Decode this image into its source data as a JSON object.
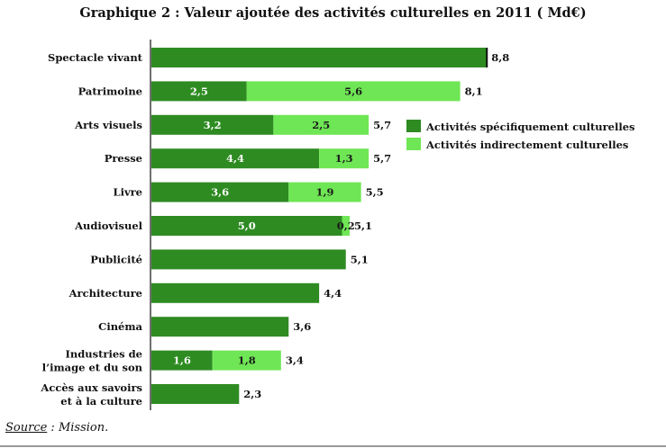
{
  "chart_data": {
    "type": "bar",
    "orientation": "horizontal",
    "stacked": true,
    "title": "Graphique 2 : Valeur ajoutée des activités culturelles en 2011 ( Md€)",
    "categories": [
      [
        "Spectacle vivant"
      ],
      [
        "Patrimoine"
      ],
      [
        "Arts visuels"
      ],
      [
        "Presse"
      ],
      [
        "Livre"
      ],
      [
        "Audiovisuel"
      ],
      [
        "Publicité"
      ],
      [
        "Architecture"
      ],
      [
        "Cinéma"
      ],
      [
        "Industries de",
        "l’image et du son"
      ],
      [
        "Accès aux savoirs",
        "et à la culture"
      ]
    ],
    "series": [
      {
        "name": "Activités spécifiquement culturelles",
        "color": "#2e8b22",
        "values": [
          8.8,
          2.5,
          3.2,
          4.4,
          3.6,
          5.0,
          5.1,
          4.4,
          3.6,
          1.6,
          2.3
        ]
      },
      {
        "name": "Activités indirectement culturelles",
        "color": "#6fe655",
        "values": [
          0,
          5.6,
          2.5,
          1.3,
          1.9,
          0.2,
          0,
          0,
          0,
          1.8,
          0
        ]
      }
    ],
    "segment_labels": [
      [
        "",
        ""
      ],
      [
        "2,5",
        "5,6"
      ],
      [
        "3,2",
        "2,5"
      ],
      [
        "4,4",
        "1,3"
      ],
      [
        "3,6",
        "1,9"
      ],
      [
        "5,0",
        "0,2"
      ],
      [
        "",
        ""
      ],
      [
        "",
        ""
      ],
      [
        "",
        ""
      ],
      [
        "1,6",
        "1,8"
      ],
      [
        "",
        ""
      ]
    ],
    "totals": [
      8.8,
      8.1,
      5.7,
      5.7,
      5.5,
      5.1,
      5.1,
      4.4,
      3.6,
      3.4,
      2.3
    ],
    "total_labels": [
      "8,8",
      "8,1",
      "5,7",
      "5,7",
      "5,5",
      "5,1",
      "5,1",
      "4,4",
      "3,6",
      "3,4",
      "2,3"
    ],
    "xlim": [
      0,
      10
    ],
    "grid": false,
    "legend_position": "right"
  },
  "source": {
    "label": "Source",
    "text": " : Mission."
  }
}
